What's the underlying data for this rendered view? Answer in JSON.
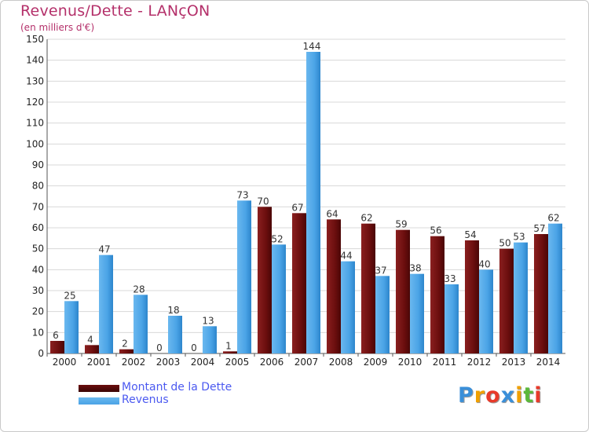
{
  "chart_data": {
    "type": "bar",
    "title": "Revenus/Dette - LANçON",
    "subtitle": "(en milliers d'€)",
    "xlabel": "",
    "ylabel": "",
    "ylim": [
      0,
      150
    ],
    "ytick_step": 10,
    "grid": true,
    "categories": [
      "2000",
      "2001",
      "2002",
      "2003",
      "2004",
      "2005",
      "2006",
      "2007",
      "2008",
      "2009",
      "2010",
      "2011",
      "2012",
      "2013",
      "2014"
    ],
    "series": [
      {
        "name": "Montant de la Dette",
        "values": [
          6,
          4,
          2,
          0,
          0,
          1,
          70,
          67,
          64,
          62,
          59,
          56,
          54,
          50,
          57
        ],
        "color": "#6b0e0e"
      },
      {
        "name": "Revenus",
        "values": [
          25,
          47,
          28,
          18,
          13,
          73,
          52,
          144,
          44,
          37,
          38,
          33,
          40,
          53,
          62
        ],
        "color": "#4aa3e6"
      }
    ],
    "legend_position": "bottom-left"
  },
  "branding": {
    "logo_letters": [
      "P",
      "r",
      "o",
      "x",
      "i",
      "t",
      "i"
    ],
    "logo_colors": [
      "#3a8fd9",
      "#f0a000",
      "#e83a2a",
      "#3a8fd9",
      "#f0a000",
      "#5bb83a",
      "#e83a2a"
    ]
  }
}
